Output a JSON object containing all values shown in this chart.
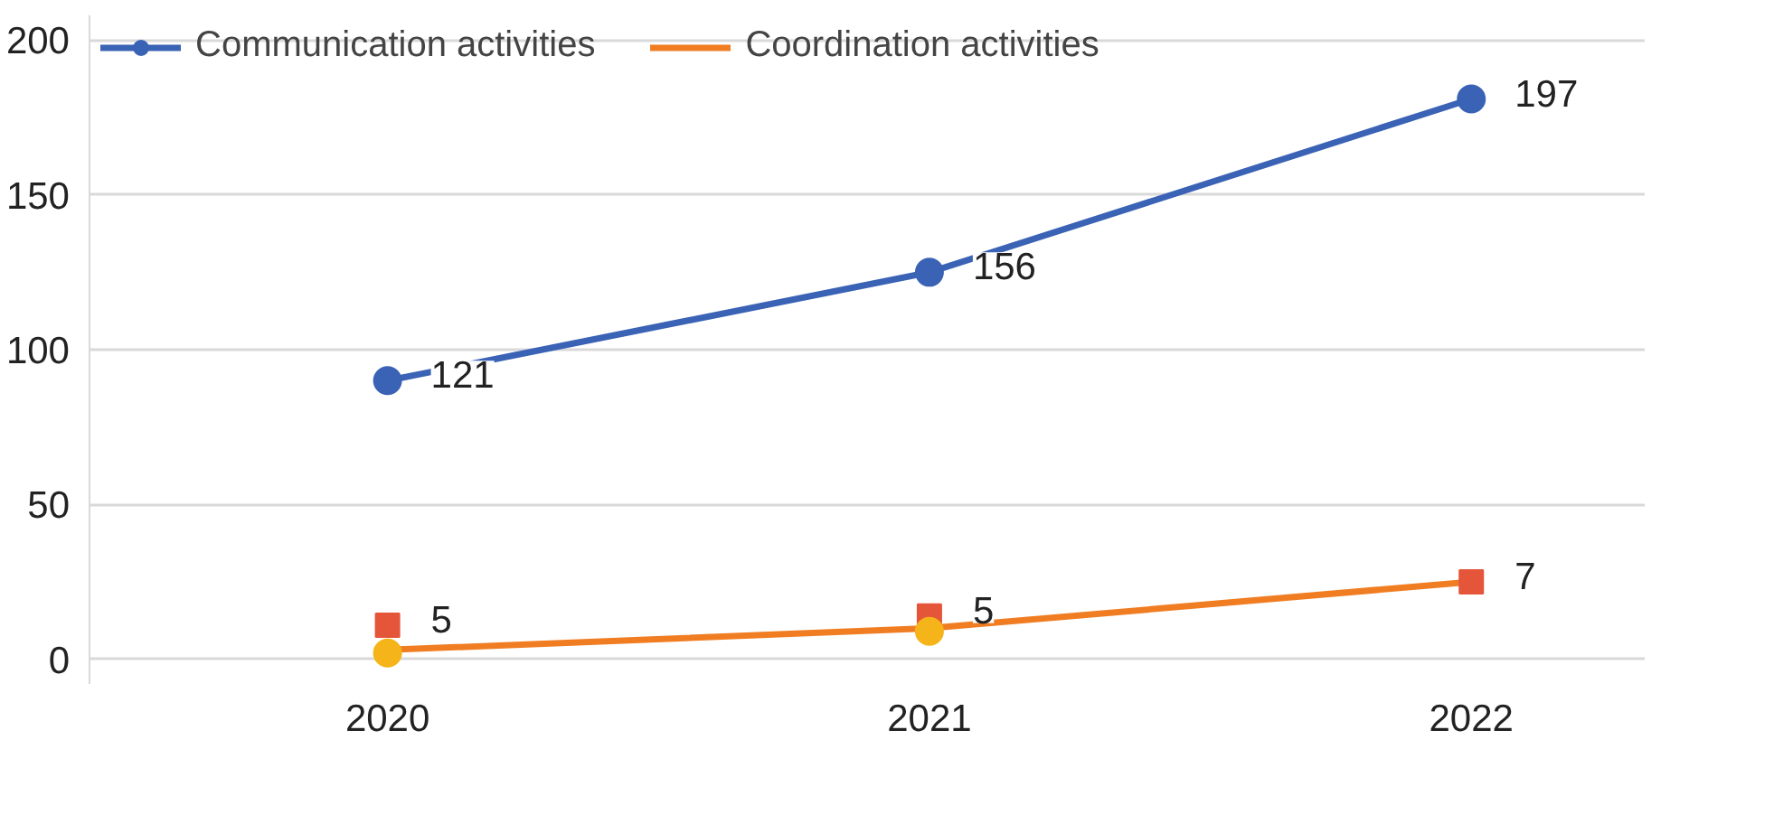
{
  "chart_data": {
    "type": "line",
    "categories": [
      "2020",
      "2021",
      "2022"
    ],
    "series": [
      {
        "name": "Communication activities",
        "color": "#3a62b5",
        "marker": "circle",
        "values": [
          90,
          125,
          181
        ]
      },
      {
        "name": "Coordination activities",
        "color": "#f07d22",
        "marker": "none",
        "values": [
          3,
          10,
          25
        ]
      },
      {
        "type": "scatter",
        "color": "#e5553a",
        "marker": "square",
        "values": [
          11,
          14,
          25
        ]
      },
      {
        "type": "scatter",
        "color": "#f4b41a",
        "marker": "circle",
        "values": [
          2,
          9,
          null
        ]
      }
    ],
    "annotations": [
      {
        "text": "121",
        "x": "2020",
        "y": 90
      },
      {
        "text": "156",
        "x": "2021",
        "y": 125
      },
      {
        "text": "197",
        "x": "2022",
        "y": 181
      },
      {
        "text": "5",
        "x": "2020",
        "y": 11
      },
      {
        "text": "5",
        "x": "2021",
        "y": 14
      },
      {
        "text": "7",
        "x": "2022",
        "y": 25
      }
    ],
    "ylim": [
      -8,
      208
    ],
    "yticks": [
      0,
      50,
      100,
      150,
      200
    ],
    "grid": "y",
    "legend": "top left"
  }
}
